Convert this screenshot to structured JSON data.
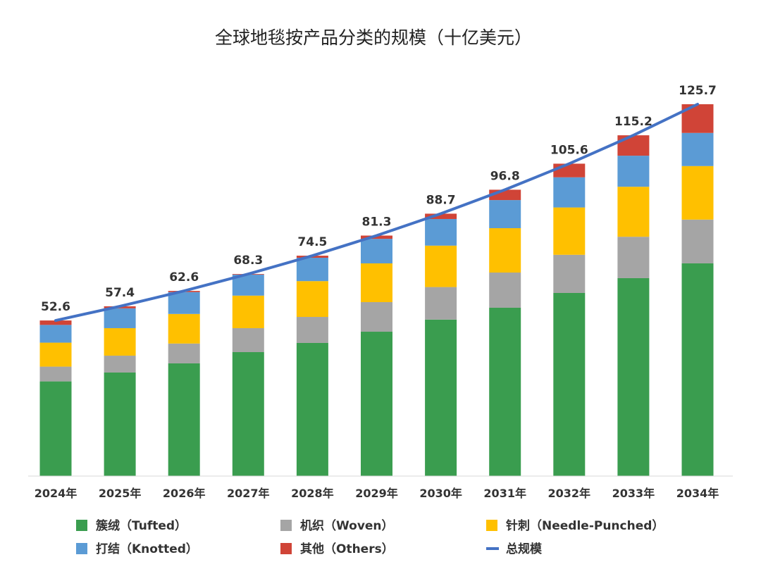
{
  "chart_data": {
    "type": "bar",
    "stacked": true,
    "title": "全球地毯按产品分类的规模（十亿美元）",
    "categories": [
      "2024年",
      "2025年",
      "2026年",
      "2027年",
      "2028年",
      "2029年",
      "2030年",
      "2031年",
      "2032年",
      "2033年",
      "2034年"
    ],
    "series": [
      {
        "name": "簇绒（Tufted）",
        "color": "#3a9d4f",
        "values": [
          32.0,
          35.0,
          38.1,
          41.9,
          45.0,
          48.8,
          52.9,
          56.9,
          61.9,
          66.9,
          71.9
        ]
      },
      {
        "name": "机织（Woven）",
        "color": "#a5a5a5",
        "values": [
          5.0,
          5.7,
          6.7,
          8.1,
          8.8,
          10.0,
          11.0,
          11.9,
          12.9,
          14.0,
          14.8
        ]
      },
      {
        "name": "针刺（Needle-Punched）",
        "color": "#ffc000",
        "values": [
          8.1,
          9.3,
          10.0,
          11.0,
          12.1,
          13.1,
          14.0,
          15.0,
          16.0,
          16.9,
          18.1
        ]
      },
      {
        "name": "打结（Knotted）",
        "color": "#5b9bd5",
        "values": [
          6.0,
          6.7,
          7.4,
          7.1,
          7.9,
          8.3,
          9.0,
          9.5,
          10.2,
          10.5,
          11.2
        ]
      },
      {
        "name": "其他（Others）",
        "color": "#d04437",
        "values": [
          1.5,
          0.7,
          0.4,
          0.2,
          0.7,
          1.1,
          1.8,
          3.5,
          4.6,
          6.9,
          9.7
        ]
      }
    ],
    "line": {
      "name": "总规模",
      "color": "#4472c4",
      "values": [
        52.6,
        57.4,
        62.6,
        68.3,
        74.5,
        81.3,
        88.7,
        96.8,
        105.6,
        115.2,
        125.7
      ]
    },
    "data_labels": [
      "52.6",
      "57.4",
      "62.6",
      "68.3",
      "74.5",
      "81.3",
      "88.7",
      "96.8",
      "105.6",
      "115.2",
      "125.7"
    ],
    "ylim": [
      0,
      125.7
    ],
    "grid": false,
    "legend_position": "bottom"
  }
}
